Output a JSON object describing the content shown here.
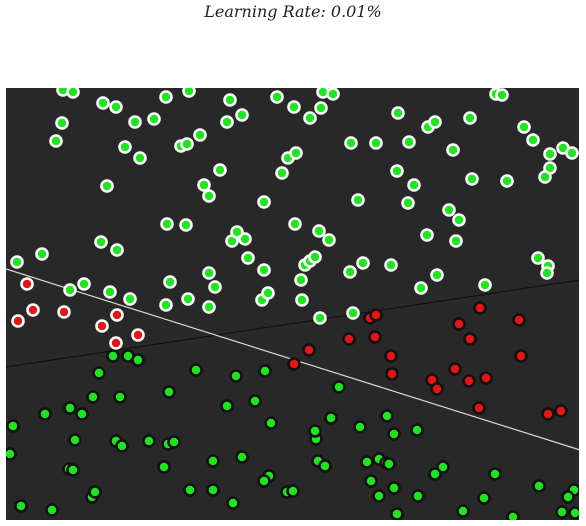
{
  "header": {
    "title": "Learning Rate: 0.01%"
  },
  "colors": {
    "background": "#282828",
    "class_green_fill": "#1ee61e",
    "class_red_fill": "#e61414",
    "outline_light": "#ffffff",
    "outline_dark": "#111111",
    "line_dark": "#111111",
    "line_light": "#d8d8d8"
  },
  "chart_data": {
    "type": "scatter"
  }
}
